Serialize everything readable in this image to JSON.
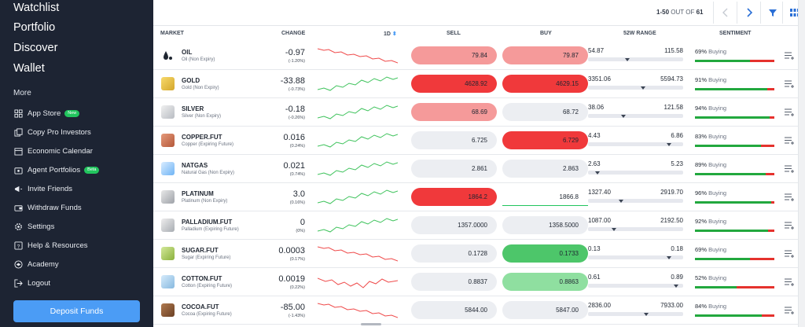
{
  "sidebar": {
    "nav": [
      {
        "label": "Watchlist"
      },
      {
        "label": "Portfolio"
      },
      {
        "label": "Discover"
      },
      {
        "label": "Wallet"
      }
    ],
    "more_title": "More",
    "menu": [
      {
        "label": "App Store",
        "icon": "grid-icon",
        "badge": "New"
      },
      {
        "label": "Copy Pro Investors",
        "icon": "copy-icon"
      },
      {
        "label": "Economic Calendar",
        "icon": "calendar-icon"
      },
      {
        "label": "Agent Portfolios",
        "icon": "agent-icon",
        "badge": "Beta"
      },
      {
        "label": "Invite Friends",
        "icon": "megaphone-icon"
      },
      {
        "label": "Withdraw Funds",
        "icon": "wallet-icon"
      },
      {
        "label": "Settings",
        "icon": "gear-icon"
      },
      {
        "label": "Help & Resources",
        "icon": "help-icon"
      },
      {
        "label": "Academy",
        "icon": "academy-icon"
      },
      {
        "label": "Logout",
        "icon": "logout-icon"
      }
    ],
    "deposit_label": "Deposit Funds"
  },
  "toolbar": {
    "range": "1-50",
    "out_of": "OUT OF",
    "total": "61"
  },
  "columns": {
    "market": "MARKET",
    "change": "CHANGE",
    "period": "1D",
    "sell": "SELL",
    "buy": "BUY",
    "range": "52W RANGE",
    "sentiment": "SENTIMENT"
  },
  "sentiment_word": "Buying",
  "colors": {
    "red_strong": "#f0393b",
    "red_light": "#f59a9a",
    "green_strong": "#4dc66a",
    "green_light": "#8fdfa0",
    "neutral": "#eceef2",
    "accent": "#4b9cf5"
  },
  "rows": [
    {
      "symbol": "OIL",
      "name": "Oil (Non Expiry)",
      "icon": "oil-drop-icon",
      "change": "-0.97",
      "change_pct": "(-1.20%)",
      "trend": "down",
      "sell": "79.84",
      "sell_style": "red_light",
      "buy": "79.87",
      "buy_style": "red_light",
      "low": "54.87",
      "high": "115.58",
      "range_pos": 0.4,
      "sentiment": 69,
      "sentiment_label": "69%"
    },
    {
      "symbol": "GOLD",
      "name": "Gold (Non Expiry)",
      "icon": "gold-bar-icon",
      "change": "-33.88",
      "change_pct": "(-0.73%)",
      "trend": "up",
      "sell": "4628.92",
      "sell_style": "red_strong",
      "buy": "4629.15",
      "buy_style": "red_strong",
      "low": "3351.06",
      "high": "5594.73",
      "range_pos": 0.57,
      "sentiment": 91,
      "sentiment_label": "91%"
    },
    {
      "symbol": "SILVER",
      "name": "Silver (Non Expiry)",
      "icon": "silver-bar-icon",
      "change": "-0.18",
      "change_pct": "(-0.26%)",
      "trend": "up",
      "sell": "68.69",
      "sell_style": "red_light",
      "buy": "68.72",
      "buy_style": "neutral",
      "low": "38.06",
      "high": "121.58",
      "range_pos": 0.36,
      "sentiment": 94,
      "sentiment_label": "94%"
    },
    {
      "symbol": "COPPER.FUT",
      "name": "Copper (Expiring Future)",
      "icon": "copper-icon",
      "change": "0.016",
      "change_pct": "(0.24%)",
      "trend": "up",
      "sell": "6.725",
      "sell_style": "neutral",
      "buy": "6.729",
      "buy_style": "red_strong",
      "low": "4.43",
      "high": "6.86",
      "range_pos": 0.85,
      "sentiment": 83,
      "sentiment_label": "83%"
    },
    {
      "symbol": "NATGAS",
      "name": "Natural Gas (Non Expiry)",
      "icon": "flame-icon",
      "change": "0.021",
      "change_pct": "(0.74%)",
      "trend": "up",
      "sell": "2.861",
      "sell_style": "neutral",
      "buy": "2.863",
      "buy_style": "neutral",
      "low": "2.63",
      "high": "5.23",
      "range_pos": 0.08,
      "sentiment": 89,
      "sentiment_label": "89%"
    },
    {
      "symbol": "PLATINUM",
      "name": "Platinum (Non Expiry)",
      "icon": "platinum-bar-icon",
      "change": "3.0",
      "change_pct": "(0.16%)",
      "trend": "up",
      "sell": "1864.2",
      "sell_style": "red_strong",
      "buy": "1866.8",
      "buy_style": "outline",
      "low": "1327.40",
      "high": "2919.70",
      "range_pos": 0.33,
      "sentiment": 96,
      "sentiment_label": "96%"
    },
    {
      "symbol": "PALLADIUM.FUT",
      "name": "Palladium (Expiring Future)",
      "icon": "palladium-bar-icon",
      "change": "0",
      "change_pct": "(0%)",
      "trend": "up",
      "sell": "1357.0000",
      "sell_style": "neutral",
      "buy": "1358.5000",
      "buy_style": "neutral",
      "low": "1087.00",
      "high": "2192.50",
      "range_pos": 0.25,
      "sentiment": 92,
      "sentiment_label": "92%"
    },
    {
      "symbol": "SUGAR.FUT",
      "name": "Sugar (Expiring Future)",
      "icon": "sugar-icon",
      "change": "0.0003",
      "change_pct": "(0.17%)",
      "trend": "down",
      "sell": "0.1728",
      "sell_style": "neutral",
      "buy": "0.1733",
      "buy_style": "green_strong",
      "low": "0.13",
      "high": "0.18",
      "range_pos": 0.85,
      "sentiment": 69,
      "sentiment_label": "69%"
    },
    {
      "symbol": "COTTON.FUT",
      "name": "Cotton (Expiring Future)",
      "icon": "cotton-icon",
      "change": "0.0019",
      "change_pct": "(0.22%)",
      "trend": "mixed",
      "sell": "0.8837",
      "sell_style": "neutral",
      "buy": "0.8863",
      "buy_style": "green_light",
      "low": "0.61",
      "high": "0.89",
      "range_pos": 0.92,
      "sentiment": 52,
      "sentiment_label": "52%"
    },
    {
      "symbol": "COCOA.FUT",
      "name": "Cocoa (Expiring Future)",
      "icon": "cocoa-icon",
      "change": "-85.00",
      "change_pct": "(-1.43%)",
      "trend": "down",
      "sell": "5844.00",
      "sell_style": "neutral",
      "buy": "5847.00",
      "buy_style": "neutral",
      "low": "2836.00",
      "high": "7933.00",
      "range_pos": 0.6,
      "sentiment": 84,
      "sentiment_label": "84%"
    }
  ]
}
